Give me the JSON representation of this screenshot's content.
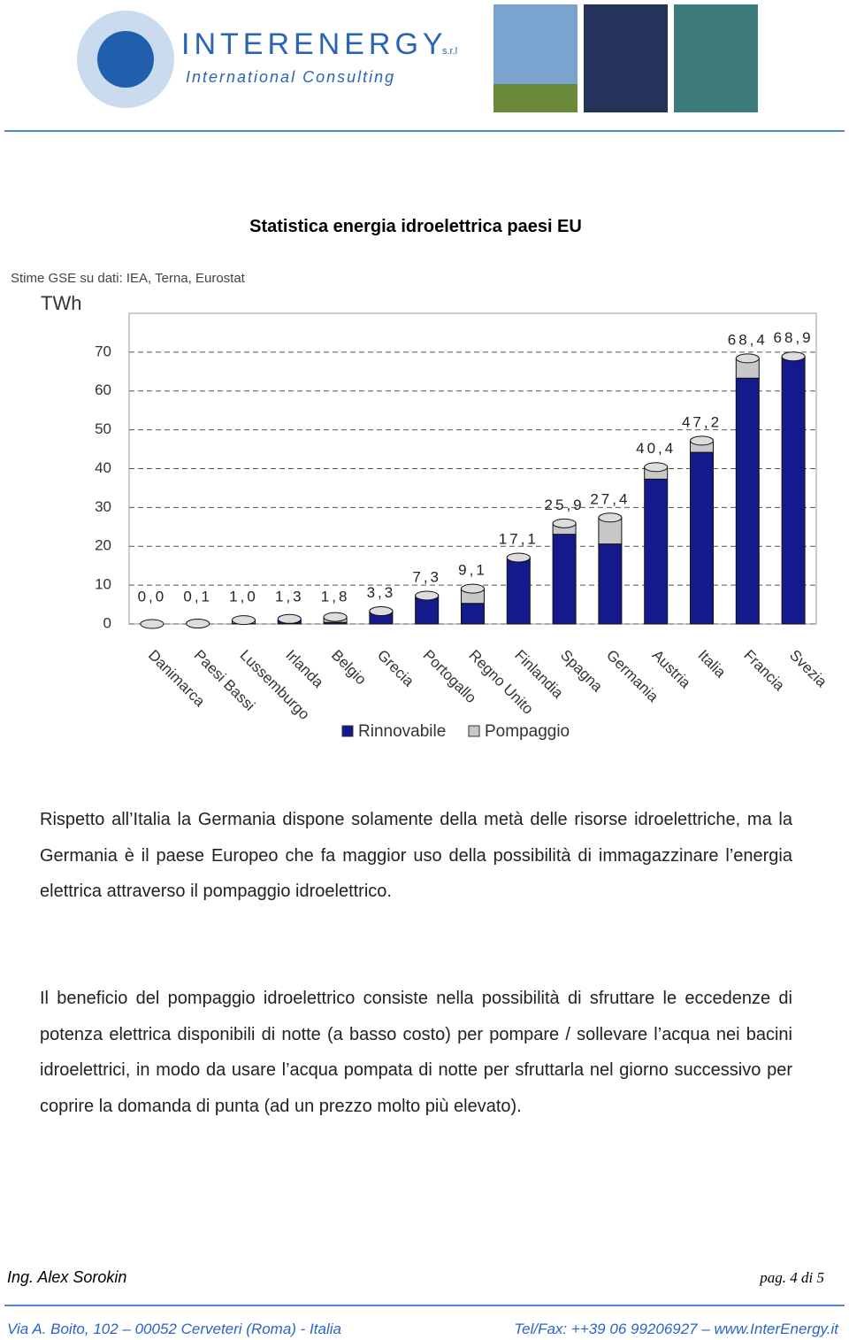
{
  "header": {
    "company": "INTERENERGY",
    "company_suffix": "s.r.l",
    "tagline": "International Consulting"
  },
  "title": "Statistica energia idroelettrica paesi EU",
  "chart_data": {
    "type": "bar",
    "stacked": true,
    "source": "Stime GSE su dati: IEA, Terna, Eurostat",
    "y_label": "TWh",
    "categories": [
      "Danimarca",
      "Paesi Bassi",
      "Lussemburgo",
      "Irlanda",
      "Belgio",
      "Grecia",
      "Portogallo",
      "Regno Unito",
      "Finlandia",
      "Spagna",
      "Germania",
      "Austria",
      "Italia",
      "Francia",
      "Svezia"
    ],
    "series": [
      {
        "name": "Rinnovabile",
        "color": "#141a8c",
        "values": [
          0,
          0.1,
          0.1,
          0.8,
          0.4,
          2.8,
          6.6,
          5.3,
          17.1,
          23.1,
          20.6,
          37.3,
          44.2,
          63.3,
          68.9
        ]
      },
      {
        "name": "Pompaggio",
        "color": "#c8c8c8",
        "values": [
          0,
          0,
          0.9,
          0.5,
          1.4,
          0.5,
          0.7,
          3.8,
          0,
          2.8,
          6.8,
          3.1,
          3.0,
          5.1,
          0
        ]
      }
    ],
    "totals": {
      "values": [
        0,
        0.1,
        1.0,
        1.3,
        1.8,
        3.3,
        7.3,
        9.1,
        17.1,
        25.9,
        27.4,
        40.4,
        47.2,
        68.4,
        68.9
      ],
      "value_labels": [
        "0,0",
        "0,1",
        "1,0",
        "1,3",
        "1,8",
        "3,3",
        "7,3",
        "9,1",
        "17,1",
        "25,9",
        "27,4",
        "40,4",
        "47,2",
        "68,4",
        "68,9"
      ]
    },
    "ylim": [
      0,
      80
    ],
    "yticks": [
      0,
      10,
      20,
      30,
      40,
      50,
      60,
      70
    ],
    "grid": true,
    "legend": "bottom"
  },
  "paragraphs": [
    "Rispetto all’Italia la Germania dispone solamente della metà delle risorse idroelettriche, ma la Germania è il paese Europeo che fa maggior uso della possibilità di immagazzinare l’energia elettrica attraverso il pompaggio idroelettrico.",
    "Il beneficio del pompaggio idroelettrico consiste nella possibilità di sfruttare le eccedenze di potenza elettrica disponibili di notte (a basso costo) per pompare / sollevare l’acqua nei bacini idroelettrici, in modo da usare l’acqua pompata di notte per sfruttarla nel giorno successivo per coprire la domanda di punta (ad un prezzo molto più elevato)."
  ],
  "footer": {
    "author": "Ing. Alex Sorokin",
    "page": "pag. 4 di 5",
    "address": "Via A. Boito, 102 – 00052 Cerveteri (Roma) - Italia",
    "contact": "Tel/Fax: ++39 06 99206927 – www.InterEnergy.it"
  }
}
